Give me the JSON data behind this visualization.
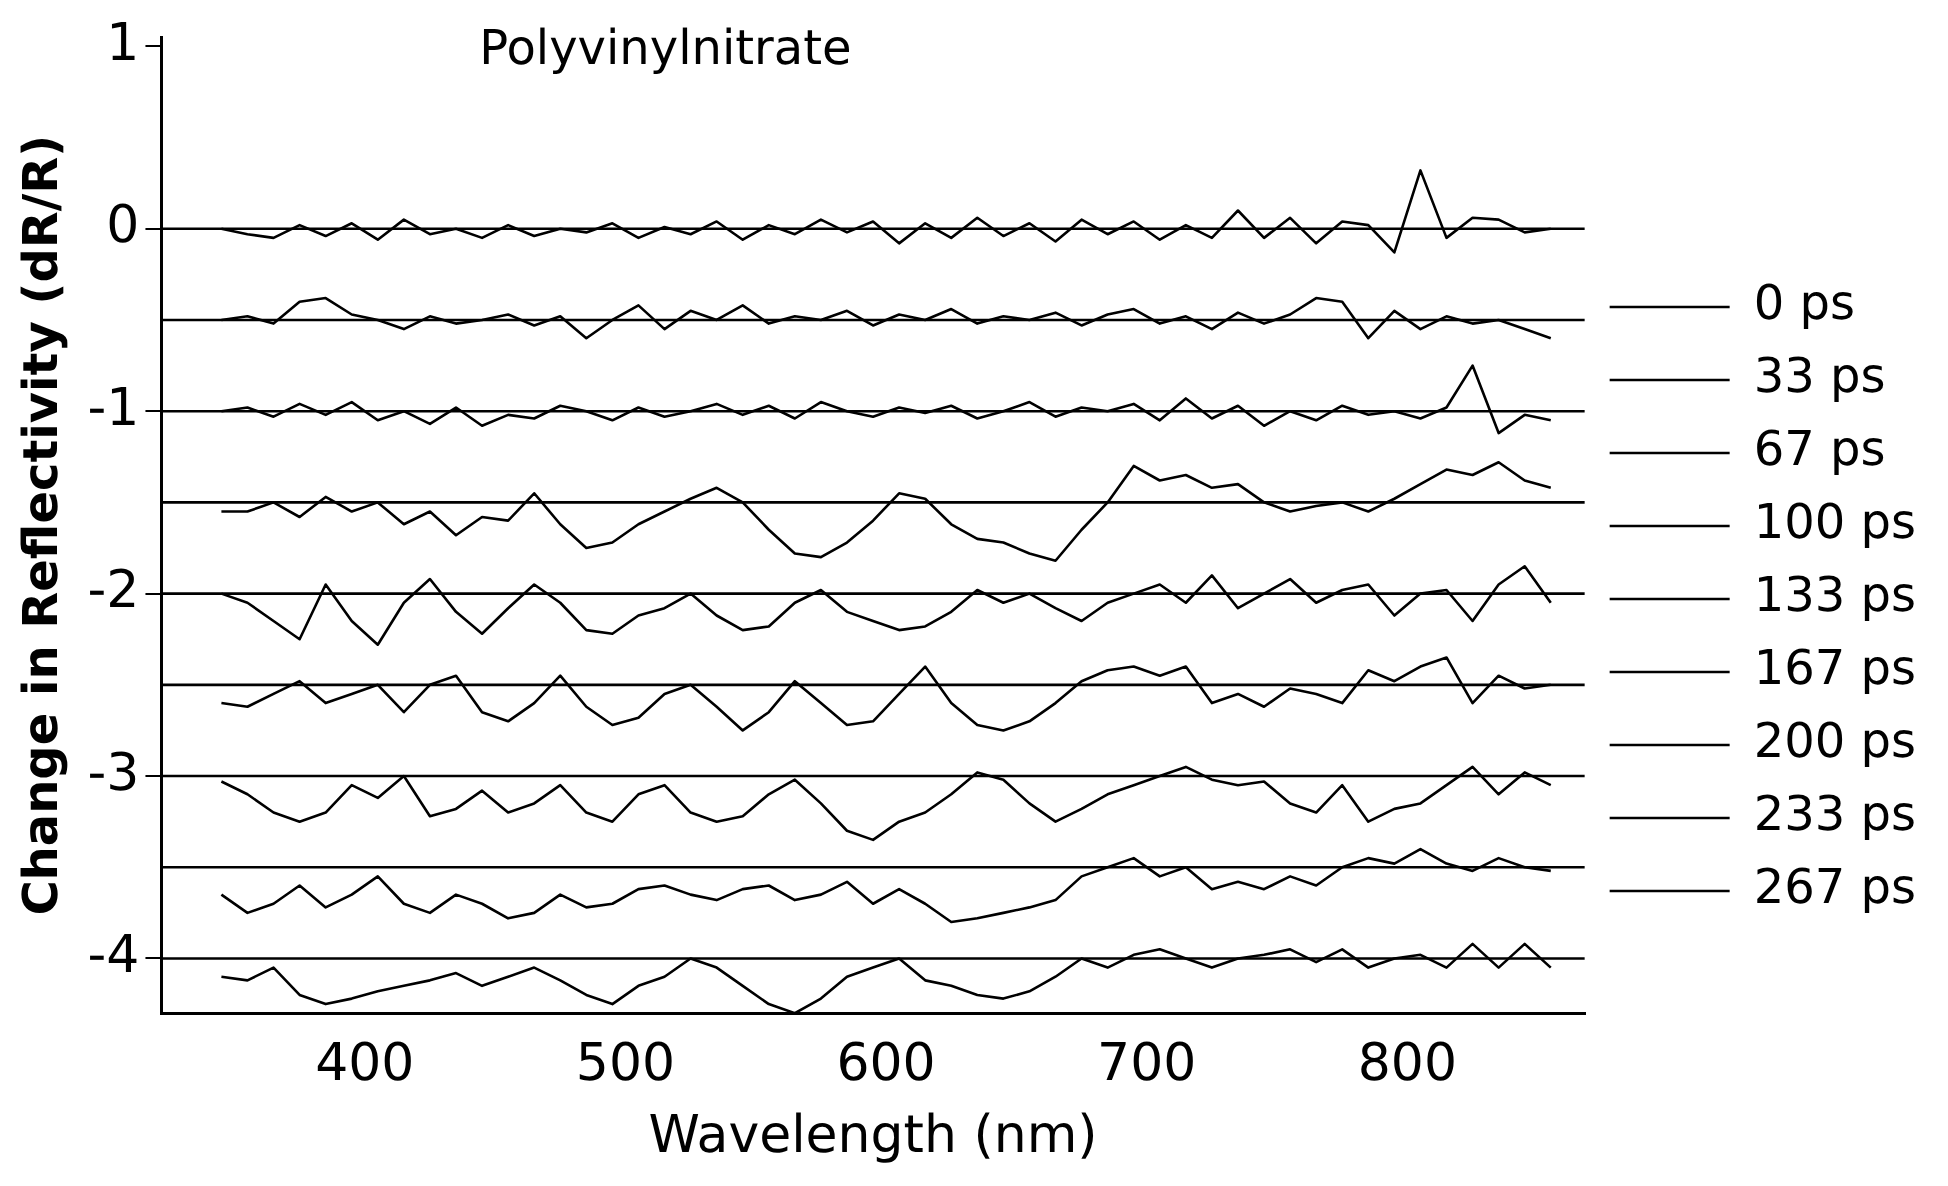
{
  "chart_data": {
    "type": "line",
    "title": "Polyvinylnitrate",
    "xlabel": "Wavelength (nm)",
    "ylabel": "Change in Reflectivity (dR/R)",
    "x": [
      345,
      355,
      365,
      375,
      385,
      395,
      405,
      415,
      425,
      435,
      445,
      455,
      465,
      475,
      485,
      495,
      505,
      515,
      525,
      535,
      545,
      555,
      565,
      575,
      585,
      595,
      605,
      615,
      625,
      635,
      645,
      655,
      665,
      675,
      685,
      695,
      705,
      715,
      725,
      735,
      745,
      755,
      765,
      775,
      785,
      795,
      805,
      815,
      825,
      835,
      845,
      855
    ],
    "xlim": [
      322,
      868
    ],
    "ylim": [
      -4.3,
      1.05
    ],
    "xticks": [
      400,
      500,
      600,
      700,
      800
    ],
    "yticks": [
      -4,
      -3,
      -2,
      -1,
      0,
      1
    ],
    "grid": false,
    "legend": "right",
    "marker": "none",
    "line_style": "solid",
    "ref_lines": [
      {
        "axis": "y",
        "value": 0,
        "color": "#000000"
      },
      {
        "axis": "y",
        "value": -0.5,
        "color": "#000000"
      },
      {
        "axis": "y",
        "value": -1,
        "color": "#000000"
      },
      {
        "axis": "y",
        "value": -1.5,
        "color": "#000000"
      },
      {
        "axis": "y",
        "value": -2,
        "color": "#000000"
      },
      {
        "axis": "y",
        "value": -2.5,
        "color": "#000000"
      },
      {
        "axis": "y",
        "value": -3,
        "color": "#000000"
      },
      {
        "axis": "y",
        "value": -3.5,
        "color": "#000000"
      },
      {
        "axis": "y",
        "value": -4,
        "color": "#000000"
      }
    ],
    "series": [
      {
        "name": "0 ps",
        "color": "#000000",
        "values": [
          0,
          -0.03,
          -0.05,
          0.02,
          -0.04,
          0.03,
          -0.06,
          0.05,
          -0.03,
          0,
          -0.05,
          0.02,
          -0.04,
          0,
          -0.02,
          0.03,
          -0.05,
          0.01,
          -0.03,
          0.04,
          -0.06,
          0.02,
          -0.03,
          0.05,
          -0.02,
          0.04,
          -0.08,
          0.03,
          -0.05,
          0.06,
          -0.04,
          0.03,
          -0.07,
          0.05,
          -0.03,
          0.04,
          -0.06,
          0.02,
          -0.05,
          0.1,
          -0.05,
          0.06,
          -0.08,
          0.04,
          0.02,
          -0.13,
          0.32,
          -0.05,
          0.06,
          0.05,
          -0.02,
          0
        ]
      },
      {
        "name": "33 ps",
        "color": "#000000",
        "values": [
          -0.5,
          -0.48,
          -0.52,
          -0.4,
          -0.38,
          -0.47,
          -0.5,
          -0.55,
          -0.48,
          -0.52,
          -0.5,
          -0.47,
          -0.53,
          -0.48,
          -0.6,
          -0.5,
          -0.42,
          -0.55,
          -0.45,
          -0.5,
          -0.42,
          -0.52,
          -0.48,
          -0.5,
          -0.45,
          -0.53,
          -0.47,
          -0.5,
          -0.44,
          -0.52,
          -0.48,
          -0.5,
          -0.46,
          -0.53,
          -0.47,
          -0.44,
          -0.52,
          -0.48,
          -0.55,
          -0.46,
          -0.52,
          -0.47,
          -0.38,
          -0.4,
          -0.6,
          -0.45,
          -0.55,
          -0.48,
          -0.52,
          -0.5,
          -0.55,
          -0.6
        ]
      },
      {
        "name": "67 ps",
        "color": "#000000",
        "values": [
          -1,
          -0.98,
          -1.03,
          -0.96,
          -1.02,
          -0.95,
          -1.05,
          -1,
          -1.07,
          -0.98,
          -1.08,
          -1.02,
          -1.04,
          -0.97,
          -1,
          -1.05,
          -0.98,
          -1.03,
          -1,
          -0.96,
          -1.02,
          -0.97,
          -1.04,
          -0.95,
          -1,
          -1.03,
          -0.98,
          -1.01,
          -0.97,
          -1.04,
          -1,
          -0.95,
          -1.03,
          -0.98,
          -1,
          -0.96,
          -1.05,
          -0.93,
          -1.04,
          -0.97,
          -1.08,
          -1,
          -1.05,
          -0.97,
          -1.02,
          -1,
          -1.04,
          -0.98,
          -0.75,
          -1.12,
          -1.02,
          -1.05
        ]
      },
      {
        "name": "100 ps",
        "color": "#000000",
        "values": [
          -1.55,
          -1.55,
          -1.5,
          -1.58,
          -1.47,
          -1.55,
          -1.5,
          -1.62,
          -1.55,
          -1.68,
          -1.58,
          -1.6,
          -1.45,
          -1.62,
          -1.75,
          -1.72,
          -1.62,
          -1.55,
          -1.48,
          -1.42,
          -1.5,
          -1.65,
          -1.78,
          -1.8,
          -1.72,
          -1.6,
          -1.45,
          -1.48,
          -1.62,
          -1.7,
          -1.72,
          -1.78,
          -1.82,
          -1.65,
          -1.5,
          -1.3,
          -1.38,
          -1.35,
          -1.42,
          -1.4,
          -1.5,
          -1.55,
          -1.52,
          -1.5,
          -1.55,
          -1.48,
          -1.4,
          -1.32,
          -1.35,
          -1.28,
          -1.38,
          -1.42
        ]
      },
      {
        "name": "133 ps",
        "color": "#000000",
        "values": [
          -2,
          -2.05,
          -2.15,
          -2.25,
          -1.95,
          -2.15,
          -2.28,
          -2.05,
          -1.92,
          -2.1,
          -2.22,
          -2.08,
          -1.95,
          -2.05,
          -2.2,
          -2.22,
          -2.12,
          -2.08,
          -2,
          -2.12,
          -2.2,
          -2.18,
          -2.05,
          -1.98,
          -2.1,
          -2.15,
          -2.2,
          -2.18,
          -2.1,
          -1.98,
          -2.05,
          -2,
          -2.08,
          -2.15,
          -2.05,
          -2,
          -1.95,
          -2.05,
          -1.9,
          -2.08,
          -2,
          -1.92,
          -2.05,
          -1.98,
          -1.95,
          -2.12,
          -2,
          -1.98,
          -2.15,
          -1.95,
          -1.85,
          -2.05
        ]
      },
      {
        "name": "167 ps",
        "color": "#000000",
        "values": [
          -2.6,
          -2.62,
          -2.55,
          -2.48,
          -2.6,
          -2.55,
          -2.5,
          -2.65,
          -2.5,
          -2.45,
          -2.65,
          -2.7,
          -2.6,
          -2.45,
          -2.62,
          -2.72,
          -2.68,
          -2.55,
          -2.5,
          -2.62,
          -2.75,
          -2.65,
          -2.48,
          -2.6,
          -2.72,
          -2.7,
          -2.55,
          -2.4,
          -2.6,
          -2.72,
          -2.75,
          -2.7,
          -2.6,
          -2.48,
          -2.42,
          -2.4,
          -2.45,
          -2.4,
          -2.6,
          -2.55,
          -2.62,
          -2.52,
          -2.55,
          -2.6,
          -2.42,
          -2.48,
          -2.4,
          -2.35,
          -2.6,
          -2.45,
          -2.52,
          -2.5
        ]
      },
      {
        "name": "200 ps",
        "color": "#000000",
        "values": [
          -3.03,
          -3.1,
          -3.2,
          -3.25,
          -3.2,
          -3.05,
          -3.12,
          -3,
          -3.22,
          -3.18,
          -3.08,
          -3.2,
          -3.15,
          -3.05,
          -3.2,
          -3.25,
          -3.1,
          -3.05,
          -3.2,
          -3.25,
          -3.22,
          -3.1,
          -3.02,
          -3.15,
          -3.3,
          -3.35,
          -3.25,
          -3.2,
          -3.1,
          -2.98,
          -3.02,
          -3.15,
          -3.25,
          -3.18,
          -3.1,
          -3.05,
          -3,
          -2.95,
          -3.02,
          -3.05,
          -3.03,
          -3.15,
          -3.2,
          -3.05,
          -3.25,
          -3.18,
          -3.15,
          -3.05,
          -2.95,
          -3.1,
          -2.98,
          -3.05
        ]
      },
      {
        "name": "233 ps",
        "color": "#000000",
        "values": [
          -3.65,
          -3.75,
          -3.7,
          -3.6,
          -3.72,
          -3.65,
          -3.55,
          -3.7,
          -3.75,
          -3.65,
          -3.7,
          -3.78,
          -3.75,
          -3.65,
          -3.72,
          -3.7,
          -3.62,
          -3.6,
          -3.65,
          -3.68,
          -3.62,
          -3.6,
          -3.68,
          -3.65,
          -3.58,
          -3.7,
          -3.62,
          -3.7,
          -3.8,
          -3.78,
          -3.75,
          -3.72,
          -3.68,
          -3.55,
          -3.5,
          -3.45,
          -3.55,
          -3.5,
          -3.62,
          -3.58,
          -3.62,
          -3.55,
          -3.6,
          -3.5,
          -3.45,
          -3.48,
          -3.4,
          -3.48,
          -3.52,
          -3.45,
          -3.5,
          -3.52
        ]
      },
      {
        "name": "267 ps",
        "color": "#000000",
        "values": [
          -4.1,
          -4.12,
          -4.05,
          -4.2,
          -4.25,
          -4.22,
          -4.18,
          -4.15,
          -4.12,
          -4.08,
          -4.15,
          -4.1,
          -4.05,
          -4.12,
          -4.2,
          -4.25,
          -4.15,
          -4.1,
          -4,
          -4.05,
          -4.15,
          -4.25,
          -4.3,
          -4.22,
          -4.1,
          -4.05,
          -4,
          -4.12,
          -4.15,
          -4.2,
          -4.22,
          -4.18,
          -4.1,
          -4,
          -4.05,
          -3.98,
          -3.95,
          -4,
          -4.05,
          -4,
          -3.98,
          -3.95,
          -4.02,
          -3.95,
          -4.05,
          -4,
          -3.98,
          -4.05,
          -3.92,
          -4.05,
          -3.92,
          -4.05
        ]
      }
    ]
  }
}
